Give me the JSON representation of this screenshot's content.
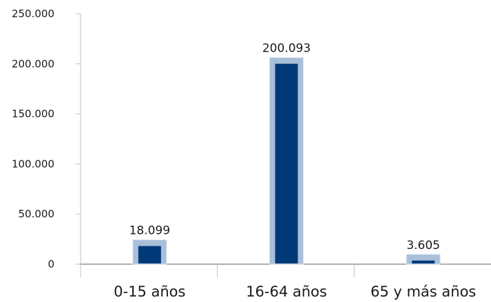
{
  "chart_data": {
    "type": "bar",
    "title": "",
    "xlabel": "",
    "ylabel": "",
    "categories": [
      "0-15 años",
      "16-64 años",
      "65 y más años"
    ],
    "values": [
      18099,
      200093,
      3605
    ],
    "value_labels": [
      "18.099",
      "200.093",
      "3.605"
    ],
    "ylim": [
      0,
      250000
    ],
    "yticks": [
      0,
      50000,
      100000,
      150000,
      200000,
      250000
    ],
    "ytick_labels": [
      "0",
      "50.000",
      "100.000",
      "150.000",
      "200.000",
      "250.000"
    ],
    "grid": false,
    "legend": "none"
  },
  "colors": {
    "bar_fill": "#003a78",
    "bar_frame": "#a9bfd9",
    "bar_frame_light": "#dbe6f2",
    "axis": "#bfbfbf",
    "baseline": "#7f7f7f"
  }
}
